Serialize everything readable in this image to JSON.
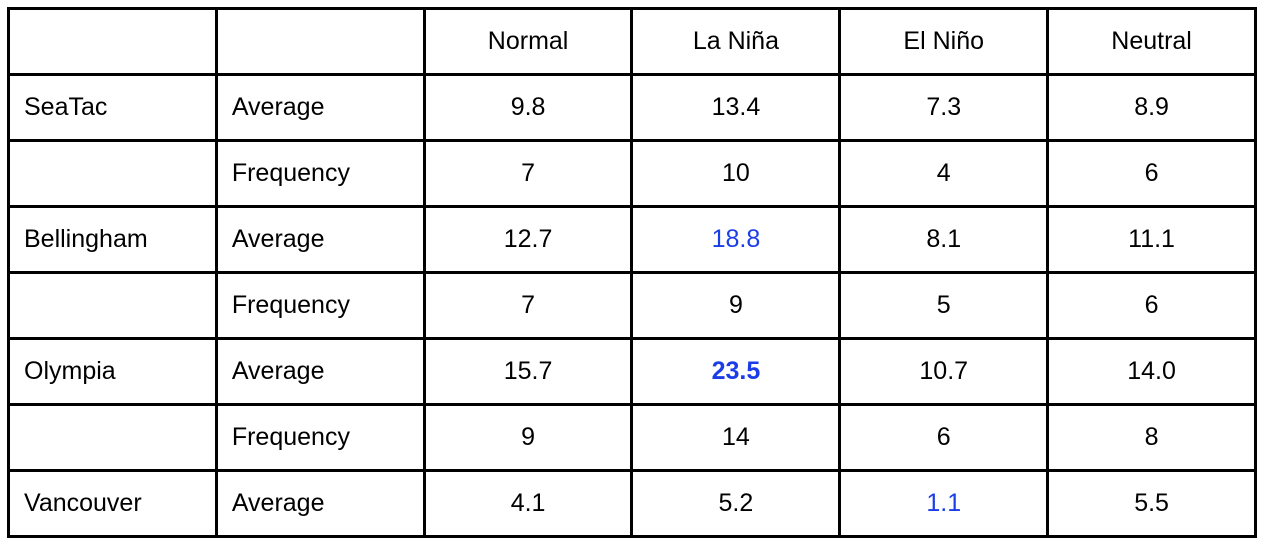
{
  "table": {
    "columns": [
      "Normal",
      "La Niña",
      "El Niño",
      "Neutral"
    ],
    "rows": [
      {
        "station": "SeaTac",
        "measure": "Average",
        "values": [
          "9.8",
          "13.4",
          "7.3",
          "8.9"
        ]
      },
      {
        "measure": "Frequency",
        "values": [
          "7",
          "10",
          "4",
          "6"
        ]
      },
      {
        "station": "Bellingham",
        "measure": "Average",
        "values": [
          "12.7",
          "18.8",
          "8.1",
          "11.1"
        ]
      },
      {
        "measure": "Frequency",
        "values": [
          "7",
          "9",
          "5",
          "6"
        ]
      },
      {
        "station": "Olympia",
        "measure": "Average",
        "values": [
          "15.7",
          "23.5",
          "10.7",
          "14.0"
        ]
      },
      {
        "measure": "Frequency",
        "values": [
          "9",
          "14",
          "6",
          "8"
        ]
      },
      {
        "station": "Vancouver",
        "measure": "Average",
        "values": [
          "4.1",
          "5.2",
          "1.1",
          "5.5"
        ]
      }
    ]
  }
}
